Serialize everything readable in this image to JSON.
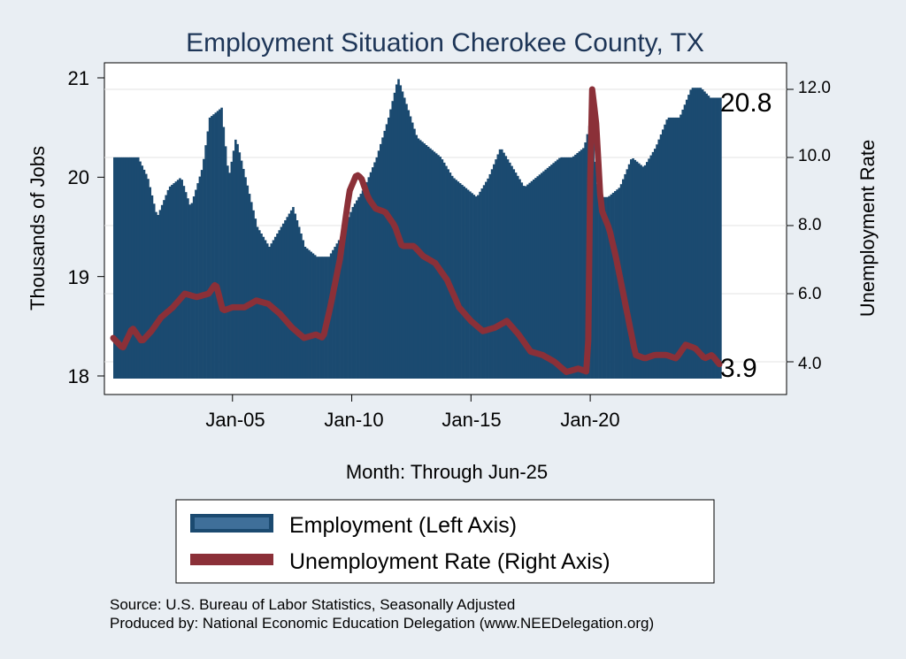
{
  "chart_data": {
    "type": "bar+line",
    "title": "Employment Situation Cherokee  County, TX",
    "xlabel": "Month: Through Jun-25",
    "ylabel_left": "Thousands of Jobs",
    "ylabel_right": "Unemployment Rate",
    "x_ticks": [
      "Jan-05",
      "Jan-10",
      "Jan-15",
      "Jan-20"
    ],
    "y_left_ticks": [
      "18",
      "19",
      "20",
      "21"
    ],
    "y_right_ticks": [
      "4.0",
      "6.0",
      "8.0",
      "10.0",
      "12.0"
    ],
    "ylim_left": [
      18,
      21
    ],
    "ylim_right": [
      3.5,
      12.5
    ],
    "x_range": [
      "Jan-00",
      "Jun-25"
    ],
    "end_label_employment": "20.8",
    "end_label_unemployment": "3.9",
    "series": [
      {
        "name": "Employment (Left Axis)",
        "color": "#1b4a70",
        "axis": "left",
        "anchors": [
          [
            2000.0,
            20.2
          ],
          [
            2001.0,
            20.2
          ],
          [
            2001.4,
            20.0
          ],
          [
            2001.8,
            19.6
          ],
          [
            2002.3,
            19.9
          ],
          [
            2002.8,
            20.0
          ],
          [
            2003.2,
            19.7
          ],
          [
            2003.7,
            20.1
          ],
          [
            2004.0,
            20.6
          ],
          [
            2004.5,
            20.7
          ],
          [
            2004.8,
            20.0
          ],
          [
            2005.1,
            20.4
          ],
          [
            2005.6,
            19.9
          ],
          [
            2006.0,
            19.5
          ],
          [
            2006.5,
            19.3
          ],
          [
            2007.0,
            19.5
          ],
          [
            2007.5,
            19.7
          ],
          [
            2008.0,
            19.3
          ],
          [
            2008.5,
            19.2
          ],
          [
            2009.0,
            19.2
          ],
          [
            2009.5,
            19.4
          ],
          [
            2010.0,
            19.7
          ],
          [
            2010.5,
            19.9
          ],
          [
            2011.0,
            20.2
          ],
          [
            2011.5,
            20.6
          ],
          [
            2011.9,
            21.0
          ],
          [
            2012.3,
            20.7
          ],
          [
            2012.7,
            20.4
          ],
          [
            2013.2,
            20.3
          ],
          [
            2013.7,
            20.2
          ],
          [
            2014.2,
            20.0
          ],
          [
            2014.7,
            19.9
          ],
          [
            2015.2,
            19.8
          ],
          [
            2015.7,
            20.0
          ],
          [
            2016.2,
            20.3
          ],
          [
            2016.7,
            20.1
          ],
          [
            2017.2,
            19.9
          ],
          [
            2017.7,
            20.0
          ],
          [
            2018.2,
            20.1
          ],
          [
            2018.7,
            20.2
          ],
          [
            2019.2,
            20.2
          ],
          [
            2019.7,
            20.3
          ],
          [
            2020.0,
            20.6
          ],
          [
            2020.3,
            19.8
          ],
          [
            2020.7,
            19.8
          ],
          [
            2021.2,
            19.9
          ],
          [
            2021.7,
            20.2
          ],
          [
            2022.2,
            20.1
          ],
          [
            2022.7,
            20.3
          ],
          [
            2023.2,
            20.6
          ],
          [
            2023.7,
            20.6
          ],
          [
            2024.2,
            20.9
          ],
          [
            2024.6,
            20.9
          ],
          [
            2025.0,
            20.8
          ],
          [
            2025.45,
            20.8
          ]
        ]
      },
      {
        "name": "Unemployment Rate (Right Axis)",
        "color": "#8b3038",
        "axis": "right",
        "anchors": [
          [
            2000.0,
            4.7
          ],
          [
            2000.4,
            4.4
          ],
          [
            2000.8,
            5.0
          ],
          [
            2001.2,
            4.6
          ],
          [
            2001.6,
            4.9
          ],
          [
            2002.0,
            5.3
          ],
          [
            2002.5,
            5.6
          ],
          [
            2003.0,
            6.0
          ],
          [
            2003.5,
            5.9
          ],
          [
            2004.0,
            6.0
          ],
          [
            2004.3,
            6.3
          ],
          [
            2004.6,
            5.5
          ],
          [
            2005.0,
            5.6
          ],
          [
            2005.5,
            5.6
          ],
          [
            2006.0,
            5.8
          ],
          [
            2006.5,
            5.7
          ],
          [
            2007.0,
            5.4
          ],
          [
            2007.5,
            5.0
          ],
          [
            2008.0,
            4.7
          ],
          [
            2008.5,
            4.8
          ],
          [
            2008.8,
            4.7
          ],
          [
            2009.1,
            5.6
          ],
          [
            2009.5,
            7.0
          ],
          [
            2009.9,
            9.0
          ],
          [
            2010.2,
            9.5
          ],
          [
            2010.4,
            9.4
          ],
          [
            2010.7,
            8.8
          ],
          [
            2011.0,
            8.5
          ],
          [
            2011.4,
            8.4
          ],
          [
            2011.8,
            8.0
          ],
          [
            2012.1,
            7.4
          ],
          [
            2012.6,
            7.4
          ],
          [
            2013.0,
            7.1
          ],
          [
            2013.5,
            6.9
          ],
          [
            2014.0,
            6.4
          ],
          [
            2014.5,
            5.6
          ],
          [
            2015.0,
            5.2
          ],
          [
            2015.5,
            4.9
          ],
          [
            2016.0,
            5.0
          ],
          [
            2016.5,
            5.2
          ],
          [
            2017.0,
            4.8
          ],
          [
            2017.5,
            4.3
          ],
          [
            2018.0,
            4.2
          ],
          [
            2018.5,
            4.0
          ],
          [
            2019.0,
            3.7
          ],
          [
            2019.5,
            3.8
          ],
          [
            2019.9,
            3.7
          ],
          [
            2020.05,
            12.2
          ],
          [
            2020.25,
            11.0
          ],
          [
            2020.45,
            8.5
          ],
          [
            2020.8,
            7.9
          ],
          [
            2021.1,
            7.0
          ],
          [
            2021.5,
            5.6
          ],
          [
            2021.9,
            4.2
          ],
          [
            2022.3,
            4.1
          ],
          [
            2022.7,
            4.2
          ],
          [
            2023.2,
            4.2
          ],
          [
            2023.6,
            4.1
          ],
          [
            2024.0,
            4.5
          ],
          [
            2024.4,
            4.4
          ],
          [
            2024.8,
            4.1
          ],
          [
            2025.1,
            4.2
          ],
          [
            2025.45,
            3.9
          ]
        ]
      }
    ],
    "legend": [
      "Employment (Left Axis)",
      "Unemployment Rate (Right Axis)"
    ],
    "legend_position": "bottom"
  },
  "footer": {
    "source": "Source: U.S. Bureau of Labor Statistics, Seasonally Adjusted",
    "produced_by": "Produced by: National Economic Education Delegation (www.NEEDelegation.org)"
  }
}
